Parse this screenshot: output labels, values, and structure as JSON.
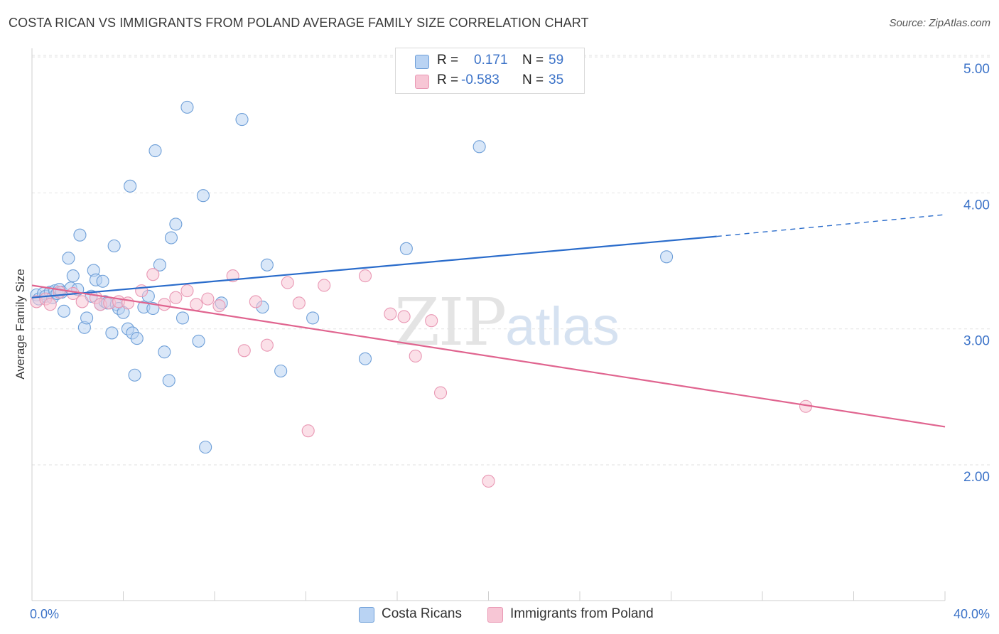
{
  "header": {
    "title": "COSTA RICAN VS IMMIGRANTS FROM POLAND AVERAGE FAMILY SIZE CORRELATION CHART",
    "source": "Source: ZipAtlas.com"
  },
  "legend": {
    "r_label": "R =",
    "n_label": "N =",
    "series": [
      {
        "r": "0.171",
        "n": "59"
      },
      {
        "r": "-0.583",
        "n": "35"
      }
    ]
  },
  "bottom_legend": [
    "Costa Ricans",
    "Immigrants from Poland"
  ],
  "watermark": {
    "zip": "ZIP",
    "atlas": "atlas"
  },
  "colors": {
    "blue_fill": "#b9d3f3",
    "blue_stroke": "#6e9fd8",
    "blue_line": "#2a6ccb",
    "pink_fill": "#f7c6d5",
    "pink_stroke": "#e998b4",
    "pink_line": "#e0648f",
    "tick_text": "#3c73c8"
  },
  "chart_data": {
    "type": "scatter",
    "title": "COSTA RICAN VS IMMIGRANTS FROM POLAND AVERAGE FAMILY SIZE CORRELATION CHART",
    "xlabel": "",
    "ylabel": "Average Family Size",
    "xlim": [
      0,
      40
    ],
    "ylim": [
      1.0,
      5.1
    ],
    "x_tick_labels": [
      "0.0%",
      "40.0%"
    ],
    "y_ticks": [
      2.0,
      3.0,
      4.0,
      5.0
    ],
    "y_tick_labels": [
      "2.00",
      "3.00",
      "4.00",
      "5.00"
    ],
    "grid": "horizontal dashed",
    "legend_position": "top-center",
    "series": [
      {
        "name": "Costa Ricans",
        "r": 0.171,
        "n": 59,
        "trend": {
          "x": [
            0,
            30.0
          ],
          "y": [
            3.23,
            3.68
          ],
          "dashed_extension_to": [
            40,
            3.84
          ]
        },
        "points": [
          [
            0.2,
            3.25
          ],
          [
            0.3,
            3.22
          ],
          [
            0.5,
            3.26
          ],
          [
            0.6,
            3.24
          ],
          [
            0.8,
            3.27
          ],
          [
            0.9,
            3.23
          ],
          [
            1.0,
            3.28
          ],
          [
            1.1,
            3.26
          ],
          [
            1.2,
            3.29
          ],
          [
            1.3,
            3.27
          ],
          [
            1.4,
            3.13
          ],
          [
            1.6,
            3.52
          ],
          [
            1.7,
            3.3
          ],
          [
            1.8,
            3.39
          ],
          [
            2.0,
            3.29
          ],
          [
            2.1,
            3.69
          ],
          [
            2.3,
            3.01
          ],
          [
            2.4,
            3.08
          ],
          [
            2.6,
            3.24
          ],
          [
            2.7,
            3.43
          ],
          [
            2.8,
            3.36
          ],
          [
            3.0,
            3.18
          ],
          [
            3.1,
            3.35
          ],
          [
            3.2,
            3.2
          ],
          [
            3.3,
            3.19
          ],
          [
            3.5,
            2.97
          ],
          [
            3.6,
            3.61
          ],
          [
            3.7,
            3.18
          ],
          [
            3.8,
            3.15
          ],
          [
            4.0,
            3.12
          ],
          [
            4.2,
            3.0
          ],
          [
            4.3,
            4.05
          ],
          [
            4.4,
            2.97
          ],
          [
            4.5,
            2.66
          ],
          [
            4.6,
            2.93
          ],
          [
            4.9,
            3.16
          ],
          [
            5.1,
            3.24
          ],
          [
            5.3,
            3.15
          ],
          [
            5.4,
            4.31
          ],
          [
            5.6,
            3.47
          ],
          [
            5.8,
            2.83
          ],
          [
            6.0,
            2.62
          ],
          [
            6.1,
            3.67
          ],
          [
            6.3,
            3.77
          ],
          [
            6.6,
            3.08
          ],
          [
            6.8,
            4.63
          ],
          [
            7.3,
            2.91
          ],
          [
            7.5,
            3.98
          ],
          [
            7.6,
            2.13
          ],
          [
            8.3,
            3.19
          ],
          [
            9.2,
            4.54
          ],
          [
            10.1,
            3.16
          ],
          [
            10.3,
            3.47
          ],
          [
            10.9,
            2.69
          ],
          [
            12.3,
            3.08
          ],
          [
            14.6,
            2.78
          ],
          [
            16.4,
            3.59
          ],
          [
            19.6,
            4.34
          ],
          [
            27.8,
            3.53
          ]
        ]
      },
      {
        "name": "Immigrants from Poland",
        "r": -0.583,
        "n": 35,
        "trend": {
          "x": [
            0,
            40
          ],
          "y": [
            3.32,
            2.28
          ]
        },
        "points": [
          [
            0.2,
            3.2
          ],
          [
            0.6,
            3.22
          ],
          [
            0.8,
            3.18
          ],
          [
            1.2,
            3.27
          ],
          [
            1.8,
            3.26
          ],
          [
            2.2,
            3.2
          ],
          [
            2.8,
            3.23
          ],
          [
            3.0,
            3.18
          ],
          [
            3.4,
            3.19
          ],
          [
            3.8,
            3.2
          ],
          [
            4.2,
            3.19
          ],
          [
            4.8,
            3.28
          ],
          [
            5.3,
            3.4
          ],
          [
            5.8,
            3.18
          ],
          [
            6.3,
            3.23
          ],
          [
            6.8,
            3.28
          ],
          [
            7.2,
            3.18
          ],
          [
            7.7,
            3.22
          ],
          [
            8.2,
            3.17
          ],
          [
            8.8,
            3.39
          ],
          [
            9.3,
            2.84
          ],
          [
            9.8,
            3.2
          ],
          [
            10.3,
            2.88
          ],
          [
            11.2,
            3.34
          ],
          [
            11.7,
            3.19
          ],
          [
            12.1,
            2.25
          ],
          [
            12.8,
            3.32
          ],
          [
            14.6,
            3.39
          ],
          [
            15.7,
            3.11
          ],
          [
            16.3,
            3.09
          ],
          [
            16.8,
            2.8
          ],
          [
            17.5,
            3.06
          ],
          [
            17.9,
            2.53
          ],
          [
            20.0,
            1.88
          ],
          [
            33.9,
            2.43
          ]
        ]
      }
    ]
  }
}
